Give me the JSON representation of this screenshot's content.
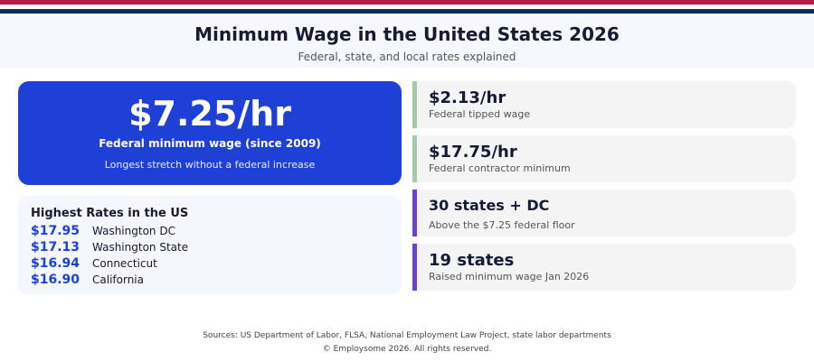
{
  "header": {
    "title": "Minimum Wage in the United States 2026",
    "subtitle": "Federal, state, and local rates explained"
  },
  "hero": {
    "value": "$7.25/hr",
    "label": "Federal minimum wage (since 2009)",
    "note": "Longest stretch without a federal increase",
    "color": "#1e40d6"
  },
  "highest": {
    "title": "Highest Rates in the US",
    "items": [
      {
        "rate": "$17.95",
        "place": "Washington DC"
      },
      {
        "rate": "$17.13",
        "place": "Washington State"
      },
      {
        "rate": "$16.94",
        "place": "Connecticut"
      },
      {
        "rate": "$16.90",
        "place": "California"
      }
    ]
  },
  "stats": [
    {
      "value": "$2.13/hr",
      "label": "Federal tipped wage"
    },
    {
      "value": "$17.75/hr",
      "label": "Federal contractor minimum"
    },
    {
      "value": "30 states + DC",
      "label": "Above the $7.25 federal floor"
    },
    {
      "value": "19 states",
      "label": "Raised minimum wage Jan 2026"
    }
  ],
  "footer": {
    "sources": "Sources: US Department of Labor, FLSA, National Employment Law Project, state labor departments",
    "copyright": "© Employsome 2026. All rights reserved."
  }
}
